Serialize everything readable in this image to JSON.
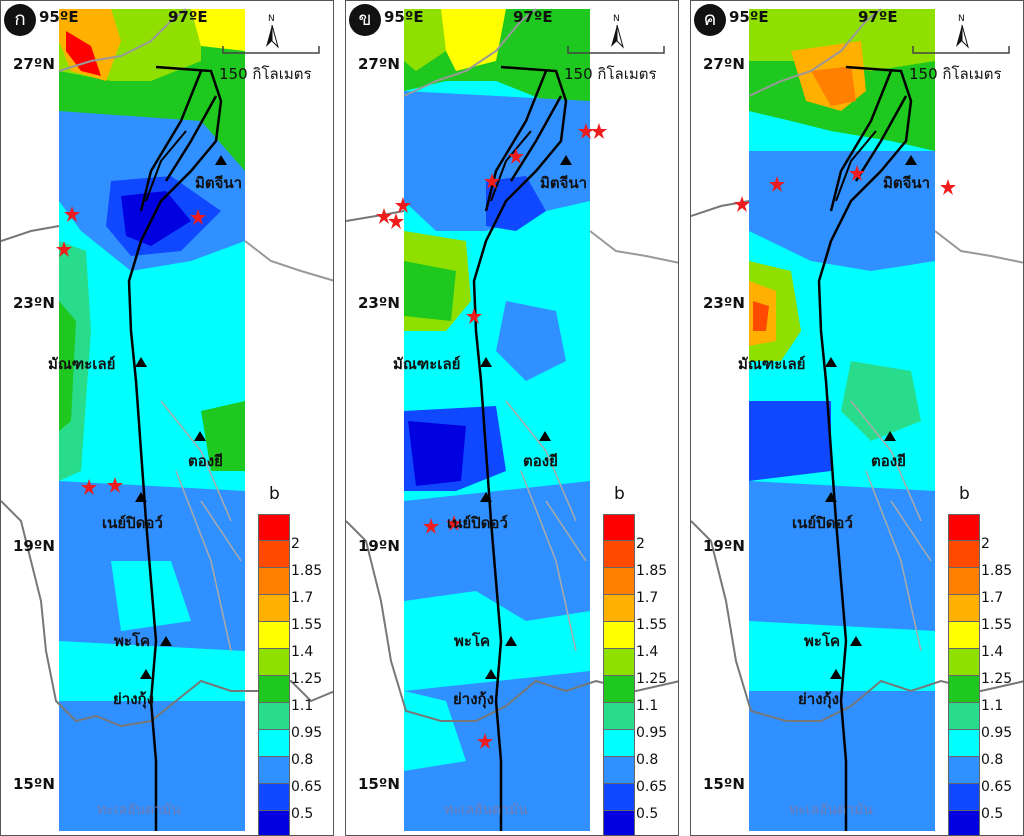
{
  "panels": [
    {
      "id": "a",
      "label": "ก"
    },
    {
      "id": "b",
      "label": "ข"
    },
    {
      "id": "c",
      "label": "ค"
    }
  ],
  "axes": {
    "lon_labels": [
      "95ºE",
      "97ºE"
    ],
    "lat_labels": [
      "27ºN",
      "23ºN",
      "19ºN",
      "15ºN"
    ]
  },
  "scale_bar": {
    "label": "150 กิโลเมตร"
  },
  "north_arrow": {
    "label": "N"
  },
  "cities": {
    "myitkyina": "มิตจีนา",
    "mandalay": "มัณฑะเลย์",
    "taungoo": "ตองยี",
    "naypyidaw": "เนย์ปิดอว์",
    "bago": "พะโค",
    "yangon": "ย่างกุ้ง"
  },
  "sea_label": "ทะเลอันดามัน",
  "legend": {
    "title": "b",
    "colors": [
      "#ff0000",
      "#ff4a00",
      "#ff7f00",
      "#ffb000",
      "#ffff00",
      "#8fe000",
      "#1ec81e",
      "#28dc8c",
      "#00ffff",
      "#3090ff",
      "#1048ff",
      "#0000e0"
    ],
    "ticks": [
      "2",
      "1.85",
      "1.7",
      "1.55",
      "1.4",
      "1.25",
      "1.1",
      "0.95",
      "0.8",
      "0.65",
      "0.5"
    ]
  },
  "icons": {
    "station": "triangle-marker",
    "epicenter": "star-marker",
    "fault": "fault-line"
  }
}
